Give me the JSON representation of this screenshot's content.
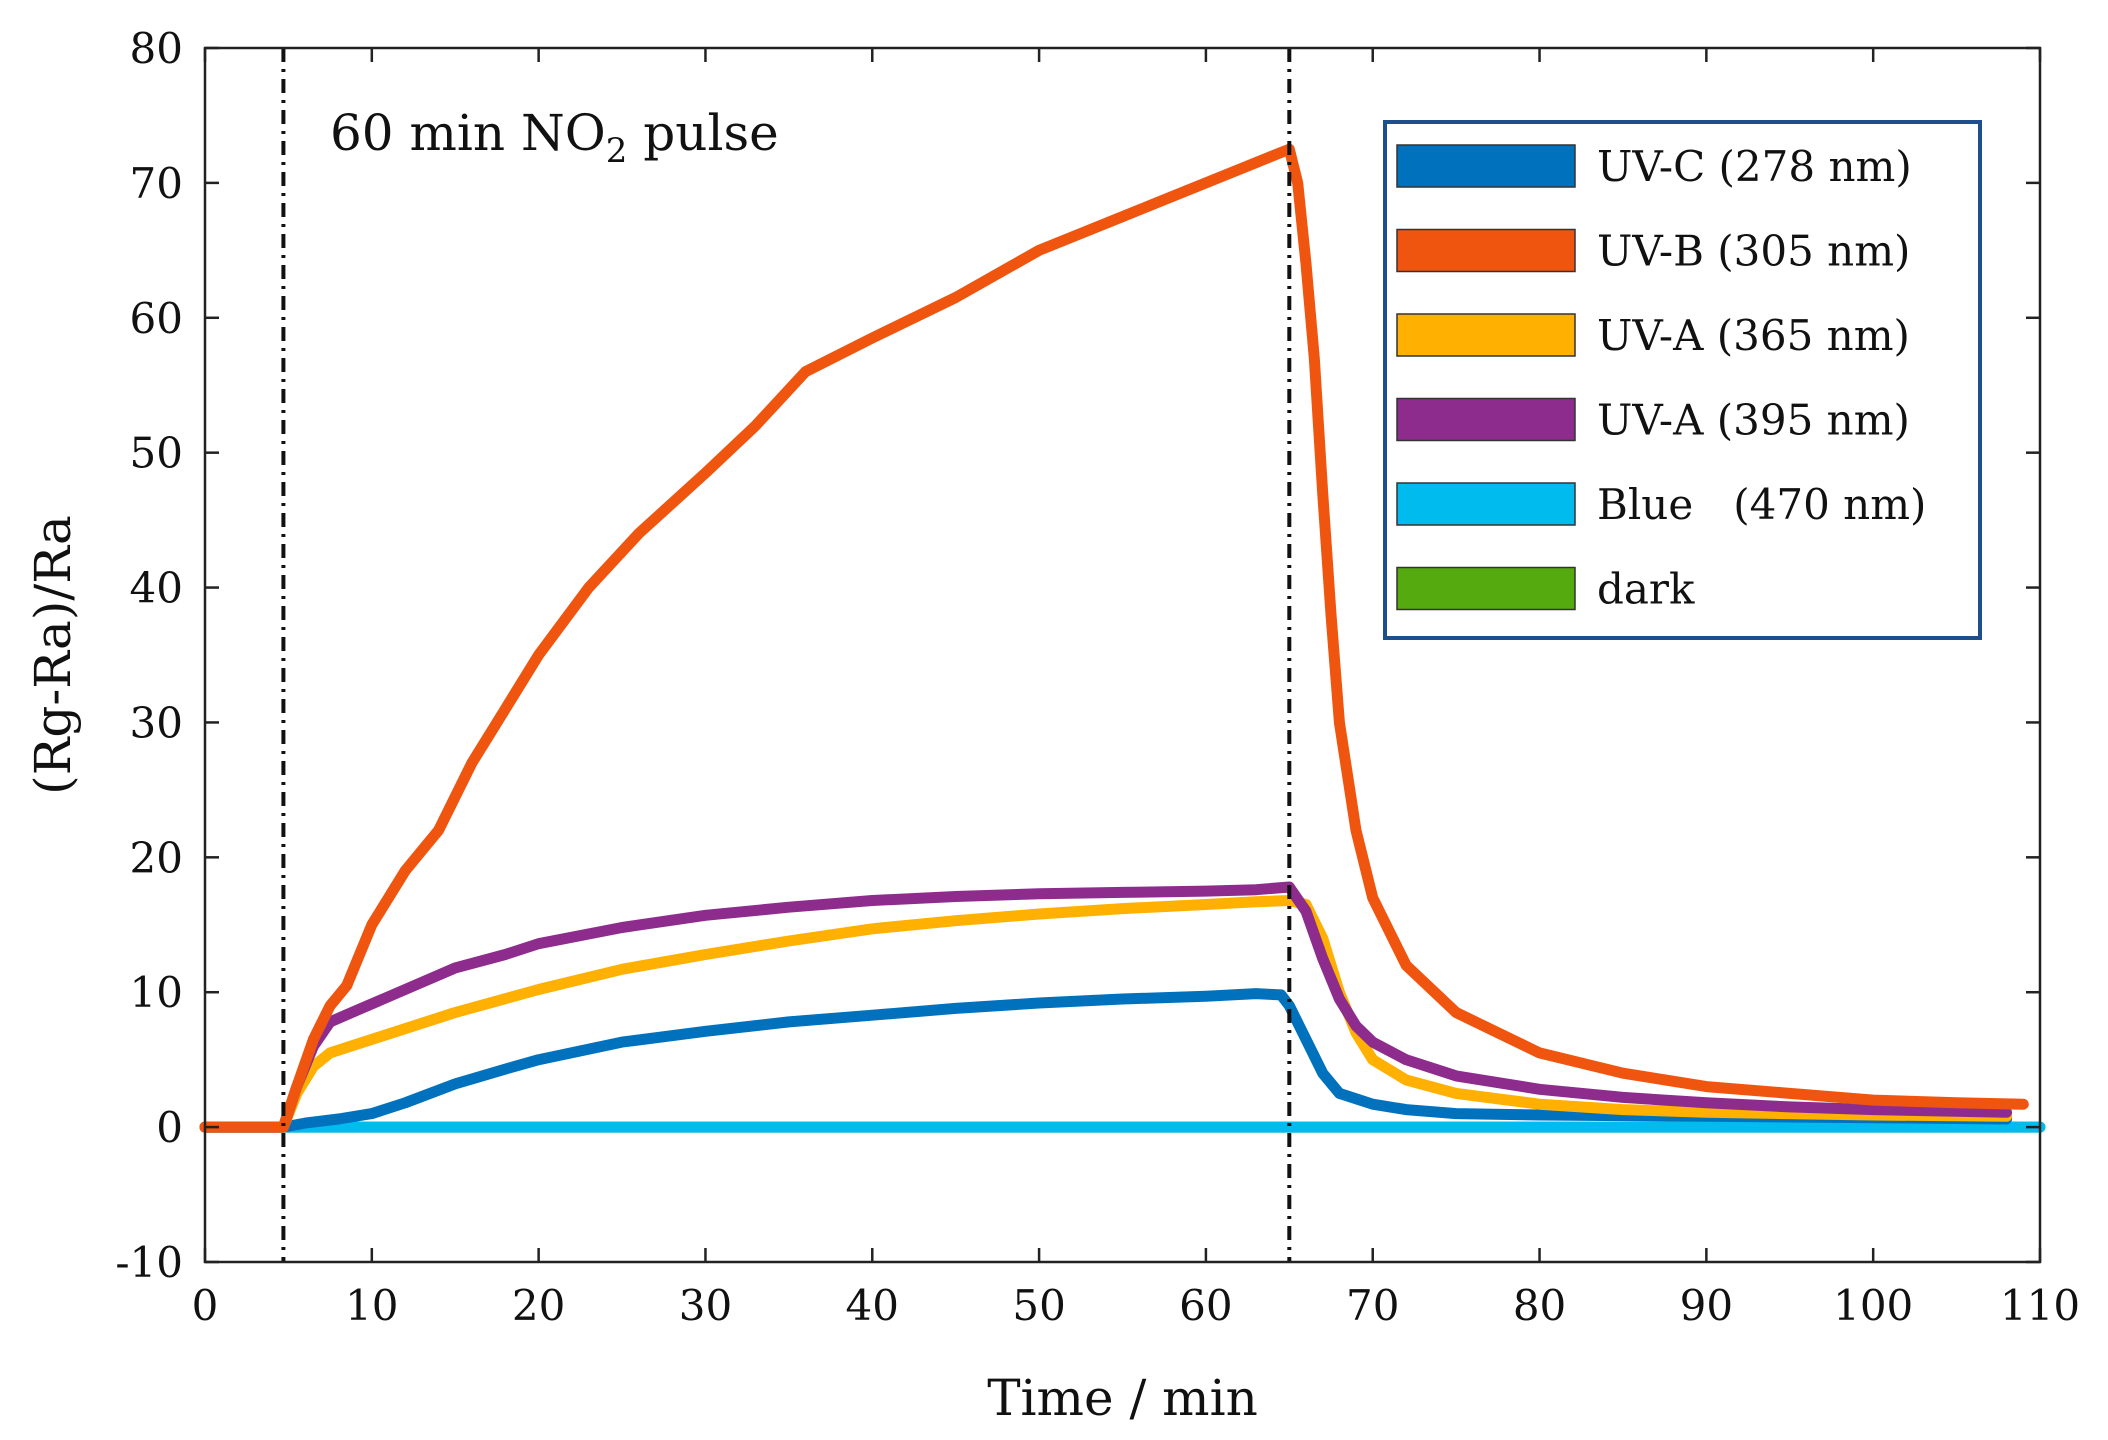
{
  "chart_data": {
    "type": "line",
    "title": "",
    "xlabel": "Time / min",
    "ylabel": "(Rg-Ra)/Ra",
    "xlim": [
      0,
      110
    ],
    "ylim": [
      -10,
      80
    ],
    "xticks": [
      0,
      10,
      20,
      30,
      40,
      50,
      60,
      70,
      80,
      90,
      100,
      110
    ],
    "yticks": [
      -10,
      0,
      10,
      20,
      30,
      40,
      50,
      60,
      70,
      80
    ],
    "grid": false,
    "legend_position": "top-right",
    "annotation": {
      "text_main": "60 min NO",
      "text_sub": "2",
      "text_tail": " pulse"
    },
    "vlines": [
      4.7,
      65
    ],
    "series": [
      {
        "name": "UV-C (278 nm)",
        "color": "#0072BD",
        "points": [
          [
            0,
            0
          ],
          [
            4.7,
            0
          ],
          [
            6,
            0.3
          ],
          [
            8,
            0.6
          ],
          [
            10,
            1.0
          ],
          [
            12,
            1.8
          ],
          [
            15,
            3.2
          ],
          [
            18,
            4.3
          ],
          [
            20,
            5.0
          ],
          [
            25,
            6.3
          ],
          [
            30,
            7.1
          ],
          [
            35,
            7.8
          ],
          [
            40,
            8.3
          ],
          [
            45,
            8.8
          ],
          [
            50,
            9.2
          ],
          [
            55,
            9.5
          ],
          [
            60,
            9.7
          ],
          [
            63,
            9.9
          ],
          [
            64.5,
            9.8
          ],
          [
            65,
            9.0
          ],
          [
            66,
            6.5
          ],
          [
            67,
            4.0
          ],
          [
            68,
            2.5
          ],
          [
            70,
            1.7
          ],
          [
            72,
            1.3
          ],
          [
            75,
            1.0
          ],
          [
            80,
            0.9
          ],
          [
            90,
            0.8
          ],
          [
            100,
            0.7
          ],
          [
            108,
            0.6
          ]
        ]
      },
      {
        "name": "UV-B (305 nm)",
        "color": "#F05510",
        "points": [
          [
            0,
            0
          ],
          [
            4.7,
            0
          ],
          [
            5.5,
            3.0
          ],
          [
            6.5,
            6.5
          ],
          [
            7.5,
            9.0
          ],
          [
            8.5,
            10.5
          ],
          [
            10,
            15.0
          ],
          [
            12,
            19.0
          ],
          [
            14,
            22.0
          ],
          [
            16,
            27.0
          ],
          [
            18,
            31.0
          ],
          [
            20,
            35.0
          ],
          [
            23,
            40.0
          ],
          [
            26,
            44.0
          ],
          [
            30,
            48.5
          ],
          [
            33,
            52.0
          ],
          [
            36,
            56.0
          ],
          [
            40,
            58.5
          ],
          [
            45,
            61.5
          ],
          [
            50,
            65.0
          ],
          [
            55,
            67.5
          ],
          [
            58,
            69.0
          ],
          [
            60,
            70.0
          ],
          [
            62,
            71.0
          ],
          [
            64,
            72.0
          ],
          [
            65,
            72.5
          ],
          [
            65.5,
            70.0
          ],
          [
            66,
            64.0
          ],
          [
            66.5,
            57.0
          ],
          [
            67,
            47.0
          ],
          [
            67.5,
            38.0
          ],
          [
            68,
            30.0
          ],
          [
            69,
            22.0
          ],
          [
            70,
            17.0
          ],
          [
            72,
            12.0
          ],
          [
            75,
            8.5
          ],
          [
            80,
            5.5
          ],
          [
            85,
            4.0
          ],
          [
            90,
            3.0
          ],
          [
            95,
            2.5
          ],
          [
            100,
            2.0
          ],
          [
            105,
            1.8
          ],
          [
            109,
            1.7
          ]
        ]
      },
      {
        "name": "UV-A (365 nm)",
        "color": "#FFB000",
        "points": [
          [
            0,
            0
          ],
          [
            4.7,
            0
          ],
          [
            5.5,
            2.5
          ],
          [
            6.5,
            4.5
          ],
          [
            7.5,
            5.5
          ],
          [
            10,
            6.5
          ],
          [
            15,
            8.5
          ],
          [
            20,
            10.2
          ],
          [
            25,
            11.7
          ],
          [
            30,
            12.8
          ],
          [
            35,
            13.8
          ],
          [
            40,
            14.7
          ],
          [
            45,
            15.3
          ],
          [
            50,
            15.8
          ],
          [
            55,
            16.2
          ],
          [
            60,
            16.5
          ],
          [
            63,
            16.7
          ],
          [
            65,
            16.8
          ],
          [
            66,
            16.5
          ],
          [
            67,
            14.0
          ],
          [
            68,
            10.0
          ],
          [
            69,
            7.0
          ],
          [
            70,
            5.0
          ],
          [
            72,
            3.5
          ],
          [
            75,
            2.5
          ],
          [
            80,
            1.7
          ],
          [
            85,
            1.3
          ],
          [
            90,
            1.1
          ],
          [
            100,
            0.9
          ],
          [
            108,
            0.8
          ]
        ]
      },
      {
        "name": "UV-A (395 nm)",
        "color": "#8E2C8E",
        "points": [
          [
            0,
            0
          ],
          [
            4.7,
            0
          ],
          [
            5.5,
            3.0
          ],
          [
            6.5,
            6.0
          ],
          [
            7.5,
            7.8
          ],
          [
            9,
            8.6
          ],
          [
            12,
            10.2
          ],
          [
            15,
            11.8
          ],
          [
            18,
            12.8
          ],
          [
            20,
            13.6
          ],
          [
            25,
            14.8
          ],
          [
            30,
            15.7
          ],
          [
            35,
            16.3
          ],
          [
            40,
            16.8
          ],
          [
            45,
            17.1
          ],
          [
            50,
            17.3
          ],
          [
            55,
            17.4
          ],
          [
            60,
            17.5
          ],
          [
            63,
            17.6
          ],
          [
            65,
            17.8
          ],
          [
            66,
            16.0
          ],
          [
            67,
            12.5
          ],
          [
            68,
            9.5
          ],
          [
            69,
            7.5
          ],
          [
            70,
            6.3
          ],
          [
            72,
            5.0
          ],
          [
            75,
            3.8
          ],
          [
            80,
            2.8
          ],
          [
            85,
            2.2
          ],
          [
            90,
            1.8
          ],
          [
            95,
            1.5
          ],
          [
            100,
            1.3
          ],
          [
            108,
            1.1
          ]
        ]
      },
      {
        "name": "Blue   (470 nm)",
        "color": "#00BBEE",
        "points": [
          [
            0,
            0
          ],
          [
            20,
            0
          ],
          [
            40,
            0
          ],
          [
            60,
            0
          ],
          [
            80,
            0
          ],
          [
            100,
            0
          ],
          [
            110,
            0
          ]
        ]
      },
      {
        "name": "dark",
        "color": "#55AA10",
        "points": [
          [
            0,
            0
          ],
          [
            110,
            0
          ]
        ]
      }
    ]
  }
}
